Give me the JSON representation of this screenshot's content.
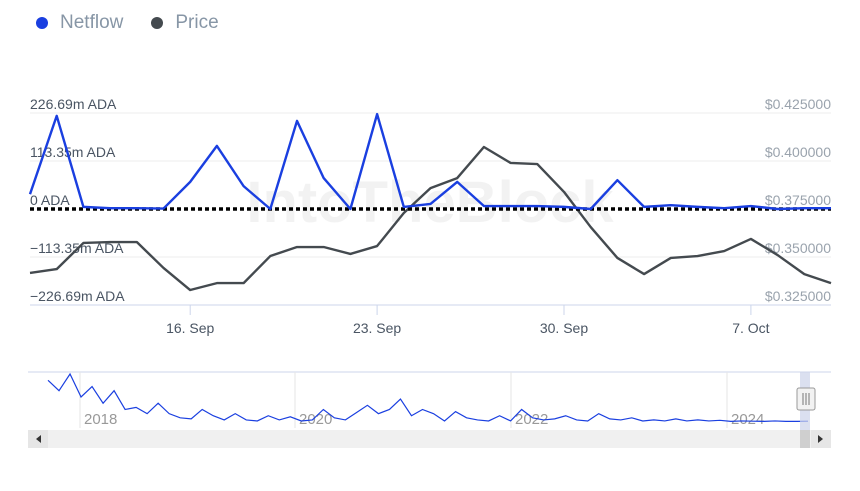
{
  "legend": [
    {
      "name": "Netflow",
      "color": "#1a3fe0"
    },
    {
      "name": "Price",
      "color": "#444a4f"
    }
  ],
  "watermark": "IntoTheBlock",
  "chart_data": {
    "type": "line",
    "x": [
      "10 Sep",
      "11 Sep",
      "12 Sep",
      "13 Sep",
      "14 Sep",
      "15 Sep",
      "16 Sep",
      "17 Sep",
      "18 Sep",
      "19 Sep",
      "20 Sep",
      "21 Sep",
      "22 Sep",
      "23 Sep",
      "24 Sep",
      "25 Sep",
      "26 Sep",
      "27 Sep",
      "28 Sep",
      "29 Sep",
      "30 Sep",
      "1 Oct",
      "2 Oct",
      "3 Oct",
      "4 Oct",
      "5 Oct",
      "6 Oct",
      "7 Oct",
      "8 Oct",
      "9 Oct",
      "10 Oct"
    ],
    "x_ticks": [
      {
        "label": "16. Sep",
        "index": 6
      },
      {
        "label": "23. Sep",
        "index": 13
      },
      {
        "label": "30. Sep",
        "index": 20
      },
      {
        "label": "7. Oct",
        "index": 27
      }
    ],
    "series": [
      {
        "name": "Netflow",
        "axis": "left",
        "unit": "m ADA",
        "color": "#1a3fe0",
        "values": [
          35,
          220,
          5,
          2,
          2,
          1,
          64,
          149,
          54,
          0,
          208,
          73,
          0,
          224,
          5,
          12,
          64,
          7,
          7,
          7,
          5,
          0,
          68,
          5,
          9,
          5,
          2,
          7,
          0,
          2,
          2
        ]
      },
      {
        "name": "Price",
        "axis": "right",
        "unit": "USD",
        "color": "#444a4f",
        "values": [
          0.3417,
          0.3437,
          0.3573,
          0.3578,
          0.3578,
          0.3443,
          0.3328,
          0.3364,
          0.3364,
          0.3505,
          0.3552,
          0.3552,
          0.3516,
          0.3557,
          0.3729,
          0.3859,
          0.3911,
          0.4073,
          0.399,
          0.3984,
          0.3839,
          0.3656,
          0.3495,
          0.3411,
          0.3495,
          0.3505,
          0.3531,
          0.3594,
          0.351,
          0.3411,
          0.3364
        ]
      }
    ],
    "left_axis": {
      "ylim": [
        -226.69,
        226.69
      ],
      "ticks": [
        "226.69m ADA",
        "113.35m ADA",
        "0 ADA",
        "−113.35m ADA",
        "−226.69m ADA"
      ]
    },
    "right_axis": {
      "ylim": [
        0.325,
        0.425
      ],
      "ticks": [
        "$0.425000",
        "$0.400000",
        "$0.375000",
        "$0.350000",
        "$0.325000"
      ]
    },
    "zero_line": "dotted",
    "grid": true,
    "legend_position": "top-left",
    "navigator": {
      "year_labels": [
        "2018",
        "2020",
        "2022",
        "2024"
      ],
      "values": [
        200,
        150,
        230,
        120,
        170,
        90,
        150,
        60,
        70,
        40,
        90,
        40,
        20,
        15,
        60,
        30,
        10,
        40,
        10,
        5,
        30,
        10,
        25,
        5,
        10,
        60,
        20,
        10,
        45,
        80,
        40,
        60,
        110,
        30,
        60,
        40,
        5,
        50,
        20,
        10,
        5,
        30,
        5,
        60,
        20,
        10,
        15,
        30,
        10,
        5,
        40,
        15,
        10,
        20,
        5,
        10,
        5,
        15,
        5,
        10,
        5,
        8,
        3,
        5,
        4,
        3,
        5,
        3,
        3,
        4
      ]
    }
  }
}
